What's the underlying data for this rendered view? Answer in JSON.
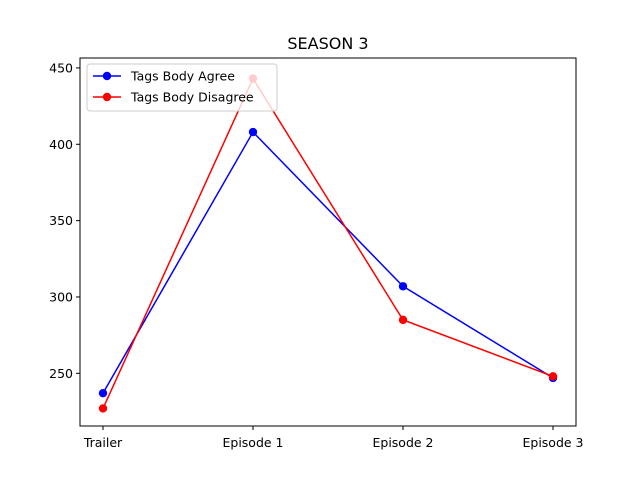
{
  "chart_data": {
    "type": "line",
    "title": "SEASON 3",
    "xlabel": "",
    "ylabel": "",
    "categories": [
      "Trailer",
      "Episode 1",
      "Episode 2",
      "Episode 3"
    ],
    "yticks": [
      250,
      300,
      350,
      400,
      450
    ],
    "ylim": [
      215.5,
      456.5
    ],
    "grid": false,
    "legend_position": "top-left",
    "series": [
      {
        "name": "Tags Body Agree",
        "color": "#0000ff",
        "values": [
          237,
          408,
          307,
          247
        ]
      },
      {
        "name": "Tags Body Disagree",
        "color": "#ff0000",
        "values": [
          227,
          443,
          285,
          248
        ]
      }
    ]
  }
}
